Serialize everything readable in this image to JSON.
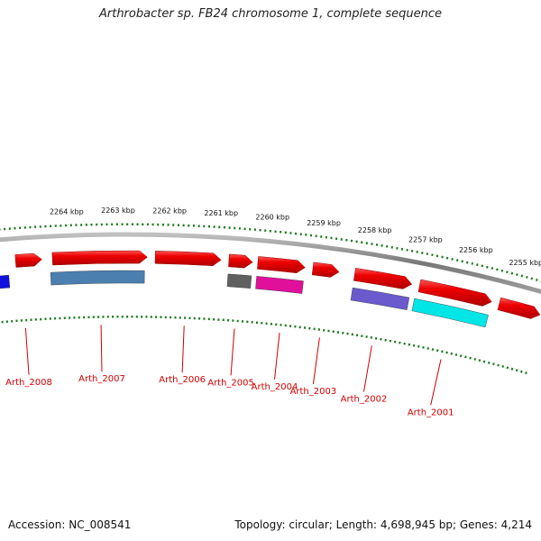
{
  "title": "Arthrobacter sp. FB24 chromosome 1, complete sequence",
  "footer": {
    "accession": "Accession: NC_008541",
    "summary": "Topology: circular; Length: 4,698,945 bp; Genes: 4,214"
  },
  "colors": {
    "forward_gene": "#e80000",
    "tick": "#1a7a1a",
    "backbone": "#888888",
    "label": "#d00000"
  },
  "scale_labels": [
    "2264 kbp",
    "2263 kbp",
    "2262 kbp",
    "2261 kbp",
    "2260 kbp",
    "2259 kbp",
    "2258 kbp",
    "2257 kbp",
    "2256 kbp",
    "2255 kbp"
  ],
  "gene_labels": [
    "Arth_2008",
    "Arth_2007",
    "Arth_2006",
    "Arth_2005",
    "Arth_2004",
    "Arth_2003",
    "Arth_2002",
    "Arth_2001"
  ],
  "reverse_gene_colors": {
    "Arth_2008": "#1010e0",
    "Arth_2007": "#4a7fb0",
    "Arth_2005": "#606060",
    "Arth_2004": "#e0109a",
    "Arth_2002": "#6a5acd",
    "Arth_2001": "#00e5e5"
  }
}
